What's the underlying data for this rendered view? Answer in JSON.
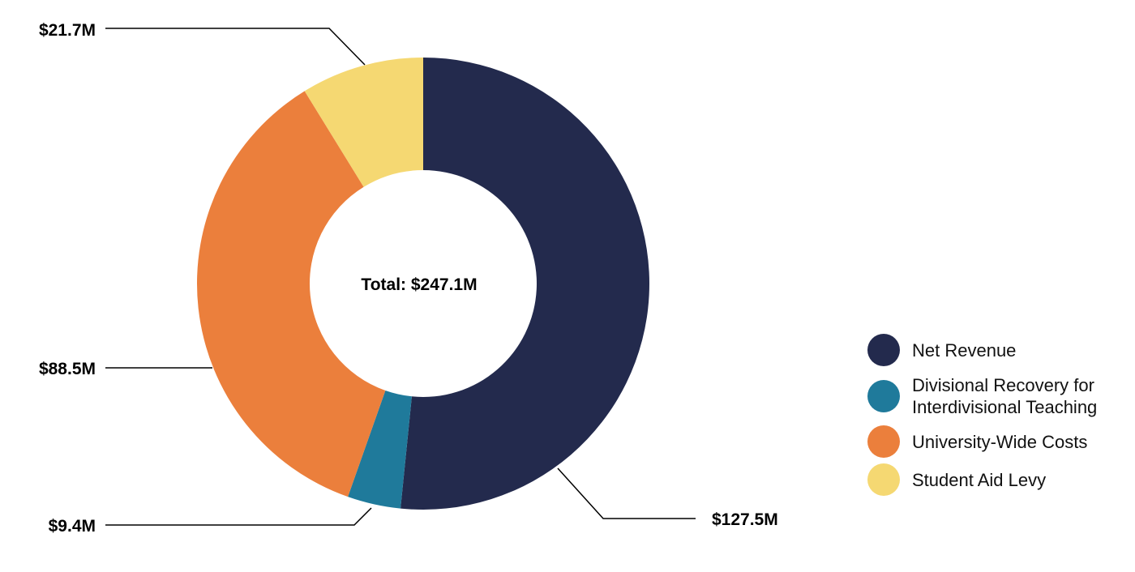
{
  "chart_data": {
    "type": "pie",
    "variant": "donut",
    "center_label": "Total: $247.1M",
    "categories": [
      "Net Revenue",
      "Divisional Recovery for Interdivisional Teaching",
      "University-Wide Costs",
      "Student Aid Levy"
    ],
    "values": [
      127.5,
      9.4,
      88.5,
      21.7
    ],
    "value_labels": [
      "$127.5M",
      "$9.4M",
      "$88.5M",
      "$21.7M"
    ],
    "colors": [
      "#232a4d",
      "#1f7a9b",
      "#eb7f3c",
      "#f5d872"
    ],
    "legend_position": "right"
  },
  "legend": {
    "items": [
      {
        "label": "Net Revenue",
        "color": "#232a4d"
      },
      {
        "label": "Divisional Recovery for Interdivisional Teaching",
        "color": "#1f7a9b"
      },
      {
        "label": "University-Wide Costs",
        "color": "#eb7f3c"
      },
      {
        "label": "Student Aid Levy",
        "color": "#f5d872"
      }
    ]
  }
}
